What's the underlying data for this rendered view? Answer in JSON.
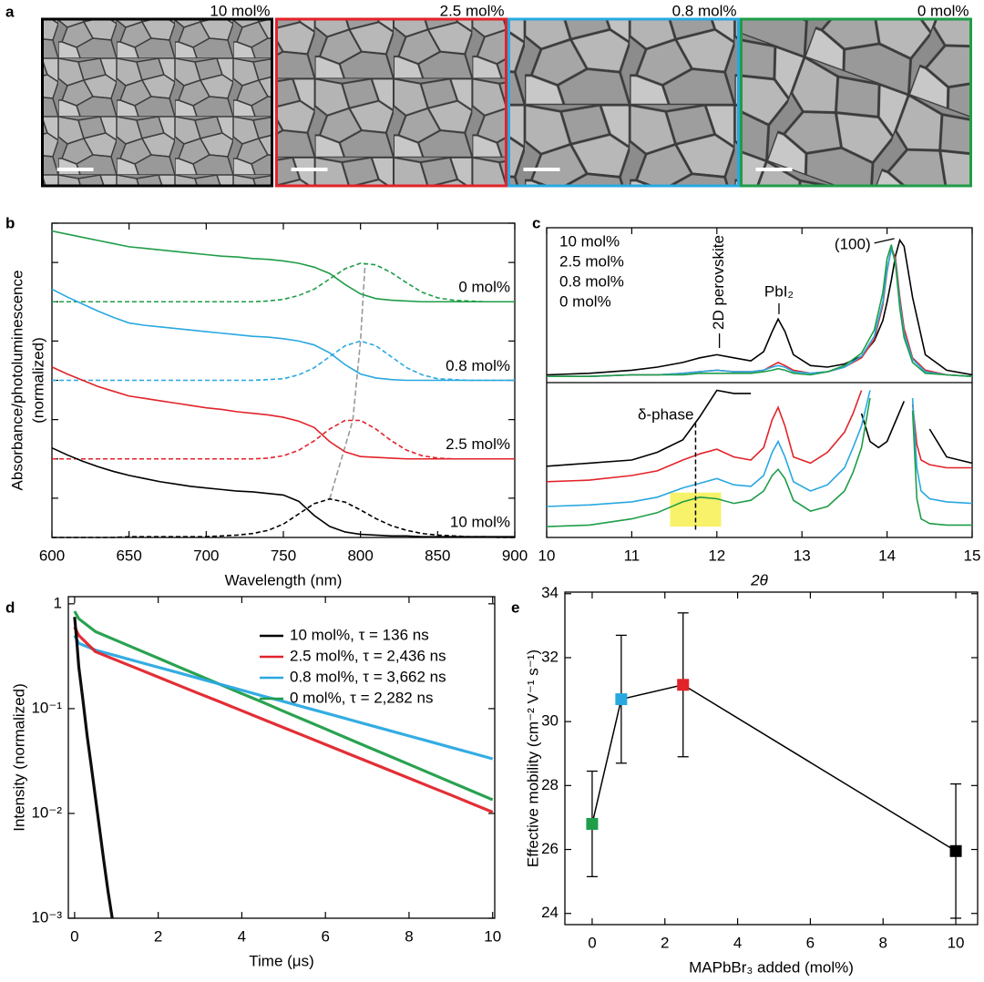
{
  "panel_labels": [
    "a",
    "b",
    "c",
    "d",
    "e"
  ],
  "images": [
    {
      "label": "10 mol%",
      "color": "#000000"
    },
    {
      "label": "2.5 mol%",
      "color": "#e2232a"
    },
    {
      "label": "0.8 mol%",
      "color": "#29a8e0"
    },
    {
      "label": "0 mol%",
      "color": "#1f9d48"
    }
  ],
  "chart_data": [
    {
      "type": "line",
      "xlabel": "Wavelength (nm)",
      "ylabel": [
        "Absorbance/photoluminescence",
        "(normalized)"
      ],
      "x": [
        600,
        610,
        620,
        630,
        640,
        650,
        660,
        670,
        680,
        690,
        700,
        710,
        720,
        730,
        740,
        750,
        760,
        770,
        780,
        790,
        800,
        810,
        820,
        830,
        840,
        850,
        860,
        870,
        880,
        890,
        900
      ],
      "xlim": [
        600,
        900
      ],
      "xticks": [
        600,
        650,
        700,
        750,
        800,
        850,
        900
      ],
      "ylim": [
        0,
        4
      ],
      "yticks": [
        0,
        0.5,
        1,
        1.5,
        2,
        2.5,
        3,
        3.5,
        4
      ],
      "ytick_labels": false,
      "series": [
        {
          "name": "10 mol%",
          "color": "#000000",
          "values": [
            1.14,
            1.05,
            0.97,
            0.9,
            0.84,
            0.79,
            0.75,
            0.71,
            0.68,
            0.65,
            0.63,
            0.61,
            0.59,
            0.58,
            0.56,
            0.54,
            0.46,
            0.28,
            0.14,
            0.07,
            0.04,
            0.03,
            0.02,
            0.02,
            0.01,
            0.01,
            0.01,
            0.01,
            0.01,
            0.01,
            0.01
          ],
          "pl_values": [
            0,
            0,
            0,
            0,
            0,
            0.01,
            0.01,
            0.01,
            0.01,
            0.01,
            0.01,
            0.02,
            0.03,
            0.05,
            0.09,
            0.17,
            0.3,
            0.43,
            0.49,
            0.45,
            0.35,
            0.24,
            0.15,
            0.09,
            0.05,
            0.03,
            0.02,
            0.01,
            0.01,
            0,
            0
          ]
        },
        {
          "name": "2.5 mol%",
          "color": "#e2232a",
          "values": [
            2.17,
            2.08,
            2.0,
            1.92,
            1.86,
            1.8,
            1.77,
            1.74,
            1.71,
            1.68,
            1.65,
            1.63,
            1.6,
            1.58,
            1.56,
            1.53,
            1.48,
            1.4,
            1.22,
            1.09,
            1.03,
            1.02,
            1.01,
            1.0,
            1.0,
            1.0,
            1.0,
            1.0,
            1.0,
            1.0,
            1.0
          ],
          "pl_values": [
            1.0,
            1.0,
            1.0,
            1.0,
            1.0,
            1.0,
            1.0,
            1.0,
            1.0,
            1.0,
            1.0,
            1.0,
            1.0,
            1.0,
            1.01,
            1.04,
            1.11,
            1.23,
            1.38,
            1.49,
            1.49,
            1.38,
            1.23,
            1.11,
            1.04,
            1.01,
            1.0,
            1.0,
            1.0,
            1.0,
            1.0
          ]
        },
        {
          "name": "0.8 mol%",
          "color": "#29a8e0",
          "values": [
            3.16,
            3.06,
            2.97,
            2.88,
            2.8,
            2.73,
            2.7,
            2.68,
            2.66,
            2.64,
            2.62,
            2.6,
            2.58,
            2.56,
            2.55,
            2.53,
            2.5,
            2.45,
            2.35,
            2.2,
            2.08,
            2.03,
            2.01,
            2.0,
            2.0,
            2.0,
            2.0,
            2.0,
            2.0,
            2.0,
            2.0
          ],
          "pl_values": [
            2.0,
            2.0,
            2.0,
            2.0,
            2.0,
            2.0,
            2.0,
            2.0,
            2.0,
            2.0,
            2.0,
            2.0,
            2.0,
            2.0,
            2.01,
            2.02,
            2.07,
            2.16,
            2.3,
            2.44,
            2.5,
            2.44,
            2.3,
            2.16,
            2.07,
            2.02,
            2.01,
            2.0,
            2.0,
            2.0,
            2.0
          ]
        },
        {
          "name": "0 mol%",
          "color": "#1f9d48",
          "values": [
            3.9,
            3.86,
            3.82,
            3.78,
            3.74,
            3.7,
            3.68,
            3.66,
            3.64,
            3.62,
            3.6,
            3.58,
            3.57,
            3.55,
            3.54,
            3.52,
            3.49,
            3.44,
            3.36,
            3.22,
            3.1,
            3.04,
            3.02,
            3.01,
            3.0,
            3.0,
            3.0,
            3.0,
            3.0,
            3.0,
            3.0
          ],
          "pl_values": [
            3.0,
            3.0,
            3.0,
            3.0,
            3.0,
            3.0,
            3.0,
            3.0,
            3.0,
            3.0,
            3.0,
            3.0,
            3.0,
            3.0,
            3.01,
            3.03,
            3.08,
            3.16,
            3.29,
            3.42,
            3.49,
            3.47,
            3.37,
            3.24,
            3.12,
            3.05,
            3.02,
            3.01,
            3.0,
            3.0,
            3.0
          ]
        }
      ],
      "peak_trace": {
        "x": [
          780,
          795,
          800,
          803
        ],
        "y": [
          0.49,
          1.49,
          2.5,
          3.49
        ],
        "color": "#999999"
      }
    },
    {
      "type": "line",
      "xlabel": "2θ",
      "xlim": [
        10,
        15
      ],
      "xticks": [
        10,
        11,
        12,
        13,
        14,
        15
      ],
      "x": [
        10,
        10.5,
        11,
        11.3,
        11.6,
        11.8,
        12.0,
        12.2,
        12.4,
        12.55,
        12.65,
        12.72,
        12.8,
        12.9,
        13.1,
        13.3,
        13.5,
        13.7,
        13.85,
        13.95,
        14.0,
        14.05,
        14.1,
        14.15,
        14.2,
        14.3,
        14.45,
        14.7,
        15
      ],
      "ylim": [
        0,
        1
      ],
      "lower_x": [
        10,
        10.5,
        11,
        11.3,
        11.6,
        11.8,
        12.0,
        12.2,
        12.4,
        12.55,
        12.65,
        12.72,
        12.8,
        12.9,
        13.1,
        13.3,
        13.5,
        13.6,
        13.7,
        13.8,
        13.9,
        14.0,
        14.2,
        14.3,
        14.35,
        14.4,
        14.5,
        14.7,
        15
      ],
      "lower_ylim": [
        0,
        1
      ],
      "legend": "upper left",
      "series": [
        {
          "name": "10 mol%",
          "color": "#000000",
          "values": [
            0.05,
            0.06,
            0.08,
            0.1,
            0.13,
            0.16,
            0.18,
            0.16,
            0.14,
            0.2,
            0.33,
            0.41,
            0.33,
            0.18,
            0.11,
            0.1,
            0.12,
            0.17,
            0.27,
            0.4,
            0.52,
            0.66,
            0.82,
            0.92,
            0.88,
            0.55,
            0.18,
            0.08,
            0.05
          ],
          "lower_values": [
            0.46,
            0.48,
            0.5,
            0.55,
            0.63,
            0.78,
            0.95,
            0.93,
            0.93,
            null,
            null,
            null,
            null,
            null,
            null,
            null,
            null,
            null,
            0.8,
            0.62,
            0.58,
            0.62,
            0.88,
            null,
            null,
            null,
            0.7,
            0.52,
            0.48
          ]
        },
        {
          "name": "2.5 mol%",
          "color": "#e2232a",
          "values": [
            0.04,
            0.04,
            0.05,
            0.05,
            0.06,
            0.07,
            0.08,
            0.07,
            0.07,
            0.08,
            0.11,
            0.13,
            0.11,
            0.08,
            0.06,
            0.07,
            0.1,
            0.16,
            0.28,
            0.5,
            0.72,
            0.87,
            0.8,
            0.55,
            0.35,
            0.16,
            0.08,
            0.05,
            0.04
          ],
          "lower_values": [
            0.36,
            0.37,
            0.4,
            0.43,
            0.5,
            0.54,
            0.57,
            0.52,
            0.5,
            0.58,
            0.76,
            0.84,
            0.72,
            0.52,
            0.48,
            0.55,
            0.68,
            0.8,
            0.95,
            null,
            null,
            null,
            null,
            0.86,
            0.6,
            0.5,
            0.47,
            0.45,
            0.45
          ]
        },
        {
          "name": "0.8 mol%",
          "color": "#29a8e0",
          "values": [
            0.04,
            0.04,
            0.05,
            0.05,
            0.06,
            0.07,
            0.08,
            0.07,
            0.07,
            0.08,
            0.1,
            0.11,
            0.1,
            0.07,
            0.06,
            0.07,
            0.1,
            0.17,
            0.3,
            0.52,
            0.73,
            0.86,
            0.78,
            0.52,
            0.32,
            0.15,
            0.07,
            0.05,
            0.04
          ],
          "lower_values": [
            0.2,
            0.21,
            0.23,
            0.26,
            0.32,
            0.35,
            0.38,
            0.34,
            0.33,
            0.4,
            0.55,
            0.62,
            0.52,
            0.36,
            0.3,
            0.34,
            0.45,
            0.58,
            0.72,
            0.95,
            null,
            null,
            null,
            0.9,
            0.45,
            0.3,
            0.25,
            0.23,
            0.22
          ]
        },
        {
          "name": "0 mol%",
          "color": "#1f9d48",
          "values": [
            0.04,
            0.04,
            0.05,
            0.05,
            0.05,
            0.06,
            0.06,
            0.06,
            0.06,
            0.07,
            0.08,
            0.09,
            0.08,
            0.06,
            0.05,
            0.07,
            0.11,
            0.19,
            0.34,
            0.58,
            0.8,
            0.89,
            0.76,
            0.48,
            0.29,
            0.13,
            0.06,
            0.05,
            0.04
          ],
          "lower_values": [
            0.07,
            0.08,
            0.12,
            0.16,
            0.23,
            0.26,
            0.25,
            0.22,
            0.24,
            0.3,
            0.4,
            0.44,
            0.38,
            0.24,
            0.17,
            0.2,
            0.3,
            0.42,
            0.58,
            0.9,
            null,
            null,
            null,
            0.82,
            0.25,
            0.12,
            0.09,
            0.08,
            0.08
          ]
        }
      ],
      "annotations": [
        {
          "text": "2D perovskite",
          "x": 12.03,
          "y": 0.2,
          "vertical": true
        },
        {
          "text": "PbI₂",
          "x": 12.73,
          "y": 0.43
        },
        {
          "text": "(100)",
          "x": 14.15,
          "y": 0.93
        }
      ],
      "delta_phase": {
        "text": "δ-phase",
        "x": 11.75,
        "ylim": [
          0.05,
          0.74
        ]
      },
      "highlight": {
        "xlim": [
          11.45,
          12.05
        ],
        "ylim": [
          0.07,
          0.29
        ],
        "color": "#f7f26a"
      }
    },
    {
      "type": "line",
      "yscale": "log",
      "xlabel": "Time (μs)",
      "ylabel": "Intensity (normalized)",
      "xlim": [
        -0.15,
        10.05
      ],
      "ylim": [
        0.001,
        1.17
      ],
      "xticks": [
        0,
        2,
        4,
        6,
        8,
        10
      ],
      "yticks": [
        1,
        {
          "value": 0.1,
          "label": "10⁻¹"
        },
        {
          "value": 0.01,
          "label": "10⁻²"
        },
        {
          "value": 0.001,
          "label": "10⁻³"
        }
      ],
      "legend": "upper right",
      "series": [
        {
          "name": "10 mol%, τ = 136 ns",
          "color": "#000000",
          "x": [
            0,
            0.05,
            0.1,
            0.2,
            0.3,
            0.4,
            0.5,
            0.6,
            0.7,
            0.8,
            0.9
          ],
          "values": [
            0.75,
            0.45,
            0.25,
            0.12,
            0.055,
            0.028,
            0.014,
            0.007,
            0.0035,
            0.0018,
            0.001
          ]
        },
        {
          "name": "2.5 mol%, τ = 2,436 ns",
          "color": "#e2232a",
          "x": [
            0,
            0.1,
            0.5,
            1,
            1.5,
            2,
            2.5,
            3,
            3.5,
            4,
            4.5,
            5,
            5.5,
            6,
            6.5,
            7,
            7.5,
            8,
            8.5,
            9,
            9.5,
            10
          ],
          "values": [
            0.6,
            0.5,
            0.349,
            0.29,
            0.241,
            0.2,
            0.166,
            0.138,
            0.115,
            0.0955,
            0.0793,
            0.0659,
            0.0548,
            0.0455,
            0.0378,
            0.0314,
            0.0261,
            0.0217,
            0.018,
            0.015,
            0.0124,
            0.0103
          ]
        },
        {
          "name": "0.8 mol%, τ = 3,662 ns",
          "color": "#29a8e0",
          "x": [
            0,
            0.1,
            0.5,
            1,
            1.5,
            2,
            2.5,
            3,
            3.5,
            4,
            4.5,
            5,
            5.5,
            6,
            6.5,
            7,
            7.5,
            8,
            8.5,
            9,
            9.5,
            10
          ],
          "values": [
            0.5,
            0.42,
            0.362,
            0.319,
            0.281,
            0.248,
            0.219,
            0.193,
            0.17,
            0.15,
            0.132,
            0.117,
            0.103,
            0.0908,
            0.0801,
            0.0706,
            0.0623,
            0.0549,
            0.0485,
            0.0427,
            0.0377,
            0.0332
          ]
        },
        {
          "name": "0 mol%, τ = 2,282 ns",
          "color": "#1f9d48",
          "x": [
            0,
            0.1,
            0.5,
            1,
            1.5,
            2,
            2.5,
            3,
            3.5,
            4,
            4.5,
            5,
            5.5,
            6,
            6.5,
            7,
            7.5,
            8,
            8.5,
            9,
            9.5,
            10
          ],
          "values": [
            0.85,
            0.72,
            0.543,
            0.447,
            0.368,
            0.303,
            0.249,
            0.205,
            0.169,
            0.139,
            0.115,
            0.0943,
            0.0777,
            0.064,
            0.0526,
            0.0433,
            0.0357,
            0.0294,
            0.0242,
            0.0199,
            0.0164,
            0.0135
          ]
        }
      ]
    },
    {
      "type": "scatter",
      "xlabel": "MAPbBr₃ added (mol%)",
      "ylabel": "Effective mobility (cm⁻² V⁻¹ s⁻¹)",
      "x": [
        0,
        0.8,
        2.5,
        10
      ],
      "values": [
        26.8,
        30.7,
        31.15,
        25.95
      ],
      "errors": [
        1.65,
        2.0,
        2.25,
        2.1
      ],
      "colors": [
        "#1f9d48",
        "#29a8e0",
        "#e2232a",
        "#000000"
      ],
      "line_color": "#000000",
      "xlim": [
        -0.75,
        10.6
      ],
      "ylim": [
        23.65,
        34.05
      ],
      "xticks": [
        0,
        2,
        4,
        6,
        8,
        10
      ],
      "yticks": [
        24,
        26,
        28,
        30,
        32,
        34
      ]
    }
  ]
}
